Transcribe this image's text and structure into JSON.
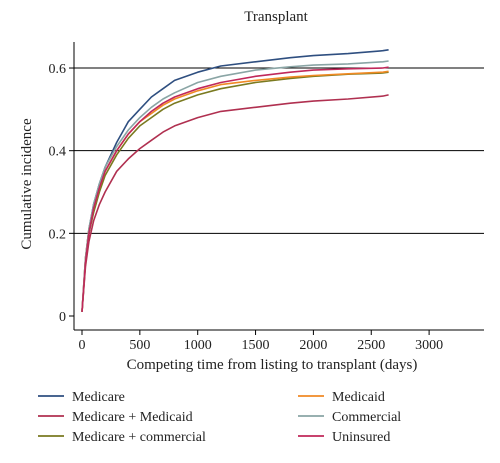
{
  "chart_data": {
    "type": "line",
    "title": "Transplant",
    "xlabel": "Competing time from listing to transplant (days)",
    "ylabel": "Cumulative incidence",
    "xlim": [
      0,
      3000
    ],
    "ylim": [
      0,
      0.6
    ],
    "xticks": [
      "0",
      "500",
      "1000",
      "1500",
      "2000",
      "2500",
      "3000"
    ],
    "yticks": [
      "0",
      "0.2",
      "0.4",
      "0.6"
    ],
    "grid": "horizontal",
    "legend_position": "bottom",
    "series": [
      {
        "name": "Medicare",
        "color": "#2f4f80",
        "x": [
          0,
          30,
          60,
          100,
          150,
          200,
          300,
          400,
          500,
          600,
          700,
          800,
          1000,
          1200,
          1500,
          1800,
          2000,
          2300,
          2600,
          2650
        ],
        "y": [
          0.01,
          0.14,
          0.21,
          0.27,
          0.32,
          0.36,
          0.42,
          0.47,
          0.5,
          0.53,
          0.55,
          0.57,
          0.59,
          0.605,
          0.615,
          0.625,
          0.63,
          0.635,
          0.642,
          0.644
        ]
      },
      {
        "name": "Medicare + Medicaid",
        "color": "#b03050",
        "x": [
          0,
          30,
          60,
          100,
          150,
          200,
          300,
          400,
          500,
          600,
          700,
          800,
          1000,
          1200,
          1500,
          1800,
          2000,
          2300,
          2600,
          2650
        ],
        "y": [
          0.01,
          0.12,
          0.18,
          0.23,
          0.27,
          0.3,
          0.35,
          0.38,
          0.405,
          0.425,
          0.445,
          0.46,
          0.48,
          0.495,
          0.505,
          0.515,
          0.52,
          0.525,
          0.532,
          0.535
        ]
      },
      {
        "name": "Medicare + commercial",
        "color": "#7a7a20",
        "x": [
          0,
          30,
          60,
          100,
          150,
          200,
          300,
          400,
          500,
          600,
          700,
          800,
          1000,
          1200,
          1500,
          1800,
          2000,
          2300,
          2600,
          2650
        ],
        "y": [
          0.01,
          0.13,
          0.2,
          0.25,
          0.3,
          0.34,
          0.39,
          0.43,
          0.46,
          0.48,
          0.5,
          0.515,
          0.535,
          0.55,
          0.565,
          0.575,
          0.58,
          0.585,
          0.588,
          0.59
        ]
      },
      {
        "name": "Medicaid",
        "color": "#f08a24",
        "x": [
          0,
          30,
          60,
          100,
          150,
          200,
          300,
          400,
          500,
          600,
          700,
          800,
          1000,
          1200,
          1500,
          1800,
          2000,
          2300,
          2600,
          2650
        ],
        "y": [
          0.01,
          0.14,
          0.21,
          0.26,
          0.31,
          0.35,
          0.4,
          0.44,
          0.47,
          0.49,
          0.51,
          0.525,
          0.545,
          0.56,
          0.57,
          0.578,
          0.582,
          0.586,
          0.59,
          0.592
        ]
      },
      {
        "name": "Commercial",
        "color": "#8aa5a5",
        "x": [
          0,
          30,
          60,
          100,
          150,
          200,
          300,
          400,
          500,
          600,
          700,
          800,
          1000,
          1200,
          1500,
          1800,
          2000,
          2300,
          2600,
          2650
        ],
        "y": [
          0.01,
          0.14,
          0.21,
          0.27,
          0.32,
          0.36,
          0.41,
          0.45,
          0.48,
          0.505,
          0.525,
          0.54,
          0.565,
          0.58,
          0.595,
          0.603,
          0.607,
          0.61,
          0.615,
          0.617
        ]
      },
      {
        "name": "Uninsured",
        "color": "#c0285a",
        "x": [
          0,
          30,
          60,
          100,
          150,
          200,
          300,
          400,
          500,
          600,
          700,
          800,
          1000,
          1200,
          1500,
          1800,
          2000,
          2300,
          2600,
          2650
        ],
        "y": [
          0.01,
          0.13,
          0.2,
          0.26,
          0.31,
          0.35,
          0.4,
          0.44,
          0.47,
          0.495,
          0.515,
          0.53,
          0.55,
          0.565,
          0.58,
          0.59,
          0.595,
          0.598,
          0.6,
          0.602
        ]
      }
    ]
  }
}
